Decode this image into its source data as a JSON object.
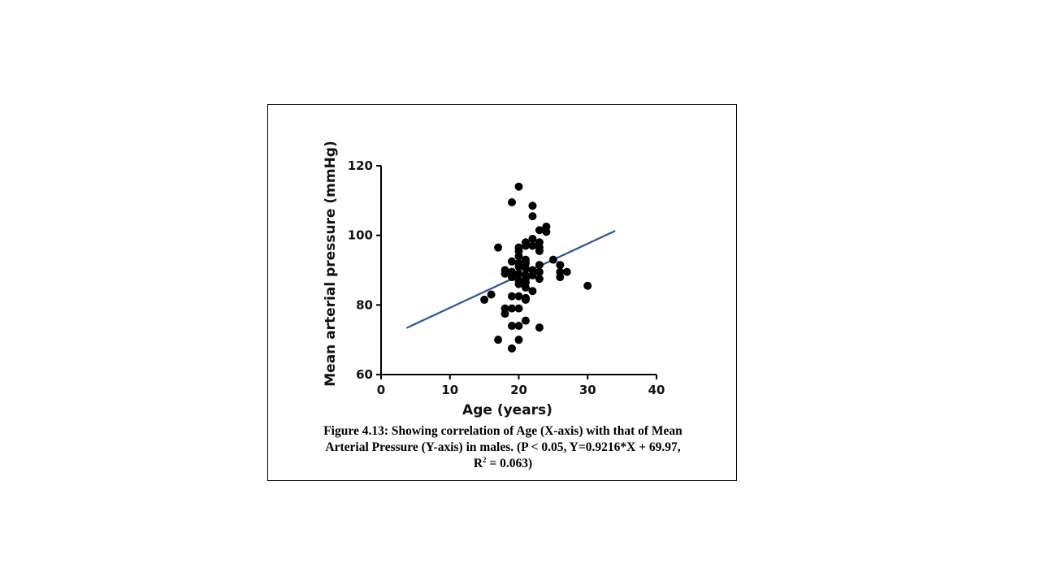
{
  "chart_data": {
    "type": "scatter",
    "xlabel": "Age (years)",
    "ylabel": "Mean arterial pressure (mmHg)",
    "xlim": [
      0,
      40
    ],
    "ylim": [
      60,
      120
    ],
    "x_ticks": [
      "0",
      "10",
      "20",
      "30",
      "40"
    ],
    "y_ticks": [
      "60",
      "80",
      "100",
      "120"
    ],
    "grid": false,
    "colors": {
      "points": "#000000",
      "fit_line": "#2e5597"
    },
    "points": [
      {
        "x": 20,
        "y": 114
      },
      {
        "x": 19,
        "y": 109.5
      },
      {
        "x": 22,
        "y": 108.5
      },
      {
        "x": 22,
        "y": 105.5
      },
      {
        "x": 24,
        "y": 102.5
      },
      {
        "x": 23,
        "y": 101.5
      },
      {
        "x": 24,
        "y": 101
      },
      {
        "x": 22,
        "y": 99
      },
      {
        "x": 21,
        "y": 98
      },
      {
        "x": 23,
        "y": 98
      },
      {
        "x": 21,
        "y": 97
      },
      {
        "x": 22,
        "y": 97
      },
      {
        "x": 20,
        "y": 96.5
      },
      {
        "x": 17,
        "y": 96.5
      },
      {
        "x": 23,
        "y": 96.5
      },
      {
        "x": 20,
        "y": 95.5
      },
      {
        "x": 23,
        "y": 95.5
      },
      {
        "x": 20,
        "y": 94
      },
      {
        "x": 21,
        "y": 93
      },
      {
        "x": 25,
        "y": 93
      },
      {
        "x": 19,
        "y": 92.5
      },
      {
        "x": 20,
        "y": 92
      },
      {
        "x": 21,
        "y": 92
      },
      {
        "x": 26,
        "y": 91.5
      },
      {
        "x": 23,
        "y": 91.5
      },
      {
        "x": 20,
        "y": 91
      },
      {
        "x": 21,
        "y": 90.5
      },
      {
        "x": 22,
        "y": 90
      },
      {
        "x": 18,
        "y": 90
      },
      {
        "x": 19,
        "y": 89.5
      },
      {
        "x": 26,
        "y": 89.5
      },
      {
        "x": 27,
        "y": 89.5
      },
      {
        "x": 23,
        "y": 89.5
      },
      {
        "x": 20,
        "y": 89
      },
      {
        "x": 18,
        "y": 89
      },
      {
        "x": 21,
        "y": 88.5
      },
      {
        "x": 22,
        "y": 88.5
      },
      {
        "x": 19,
        "y": 88
      },
      {
        "x": 26,
        "y": 88
      },
      {
        "x": 21,
        "y": 87.5
      },
      {
        "x": 23,
        "y": 87.5
      },
      {
        "x": 20,
        "y": 87
      },
      {
        "x": 21,
        "y": 86.5
      },
      {
        "x": 20,
        "y": 86
      },
      {
        "x": 30,
        "y": 85.5
      },
      {
        "x": 21,
        "y": 85
      },
      {
        "x": 22,
        "y": 84
      },
      {
        "x": 16,
        "y": 83
      },
      {
        "x": 19,
        "y": 82.5
      },
      {
        "x": 20,
        "y": 82.5
      },
      {
        "x": 21,
        "y": 82
      },
      {
        "x": 15,
        "y": 81.5
      },
      {
        "x": 21,
        "y": 81.5
      },
      {
        "x": 18,
        "y": 79
      },
      {
        "x": 19,
        "y": 79
      },
      {
        "x": 20,
        "y": 79
      },
      {
        "x": 18,
        "y": 77.5
      },
      {
        "x": 21,
        "y": 75.5
      },
      {
        "x": 19,
        "y": 74
      },
      {
        "x": 20,
        "y": 74
      },
      {
        "x": 23,
        "y": 73.5
      },
      {
        "x": 17,
        "y": 70
      },
      {
        "x": 20,
        "y": 70
      },
      {
        "x": 19,
        "y": 67.5
      }
    ],
    "fit_line": {
      "slope": 0.9216,
      "intercept": 69.97,
      "x_range": [
        3.7,
        34
      ]
    }
  },
  "caption": {
    "line1": "Figure 4.13: Showing correlation of Age (X-axis) with that of Mean",
    "line2": "Arterial Pressure (Y-axis) in males. (P < 0.05, Y=0.9216*X + 69.97,",
    "line3_prefix": "R",
    "line3_sup": "2",
    "line3_suffix": " = 0.063)"
  }
}
